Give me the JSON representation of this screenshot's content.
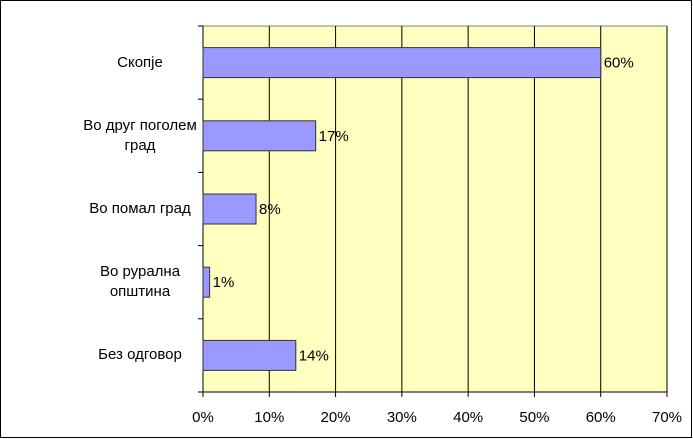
{
  "chart_data": {
    "type": "bar",
    "orientation": "horizontal",
    "categories": [
      "Скопје",
      "Во друг поголем град",
      "Во помал град",
      "Во рурална општина",
      "Без одговор"
    ],
    "values": [
      60,
      17,
      8,
      1,
      14
    ],
    "value_labels": [
      "60%",
      "17%",
      "8%",
      "1%",
      "14%"
    ],
    "color": "#9999ff",
    "xlim": [
      0,
      70
    ],
    "xticks": [
      {
        "value": 0,
        "label": "0%"
      },
      {
        "value": 10,
        "label": "10%"
      },
      {
        "value": 20,
        "label": "20%"
      },
      {
        "value": 30,
        "label": "30%"
      },
      {
        "value": 40,
        "label": "40%"
      },
      {
        "value": 50,
        "label": "50%"
      },
      {
        "value": 60,
        "label": "60%"
      },
      {
        "value": 70,
        "label": "70%"
      }
    ],
    "grid": true
  }
}
